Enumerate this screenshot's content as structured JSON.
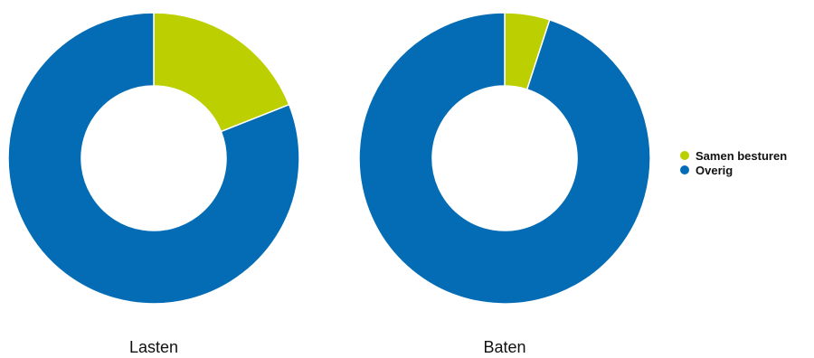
{
  "chart_data": [
    {
      "type": "pie",
      "title": "Lasten",
      "series": [
        {
          "name": "Samen besturen",
          "value": 19
        },
        {
          "name": "Overig",
          "value": 81
        }
      ]
    },
    {
      "type": "pie",
      "title": "Baten",
      "series": [
        {
          "name": "Samen besturen",
          "value": 5
        },
        {
          "name": "Overig",
          "value": 95
        }
      ]
    }
  ],
  "legend": {
    "placement": "right",
    "items": [
      {
        "label": "Samen besturen",
        "color": "#bccf00"
      },
      {
        "label": "Overig",
        "color": "#036cb4"
      }
    ]
  },
  "colors": {
    "Samen besturen": "#bccf00",
    "Overig": "#036cb4",
    "separator": "#ffffff"
  }
}
